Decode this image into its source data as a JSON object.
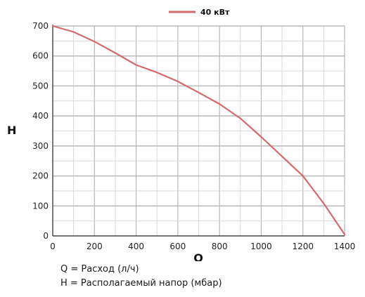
{
  "chart_data": {
    "type": "line",
    "series": [
      {
        "name": "40 кВт",
        "color": "#d46a6a",
        "x": [
          0,
          100,
          200,
          300,
          400,
          500,
          600,
          700,
          800,
          900,
          1000,
          1100,
          1200,
          1300,
          1400
        ],
        "y": [
          700,
          680,
          648,
          610,
          570,
          545,
          515,
          478,
          440,
          392,
          330,
          265,
          200,
          108,
          5
        ]
      }
    ],
    "xlabel": "Q",
    "ylabel": "H",
    "xlim": [
      0,
      1400
    ],
    "ylim": [
      0,
      700
    ],
    "xticks": [
      "0",
      "200",
      "400",
      "600",
      "800",
      "1000",
      "1200",
      "1400"
    ],
    "yticks": [
      "0",
      "100",
      "200",
      "300",
      "400",
      "500",
      "600",
      "700"
    ],
    "grid": true,
    "legend_placement": "top-center"
  },
  "notes": {
    "q_line": "Q = Расход (л/ч)",
    "h_line": "H = Располагаемый напор (мбар)"
  },
  "colors": {
    "grid": "#d9d9d9",
    "grid_major": "#b8b8b8",
    "axis": "#222222"
  }
}
